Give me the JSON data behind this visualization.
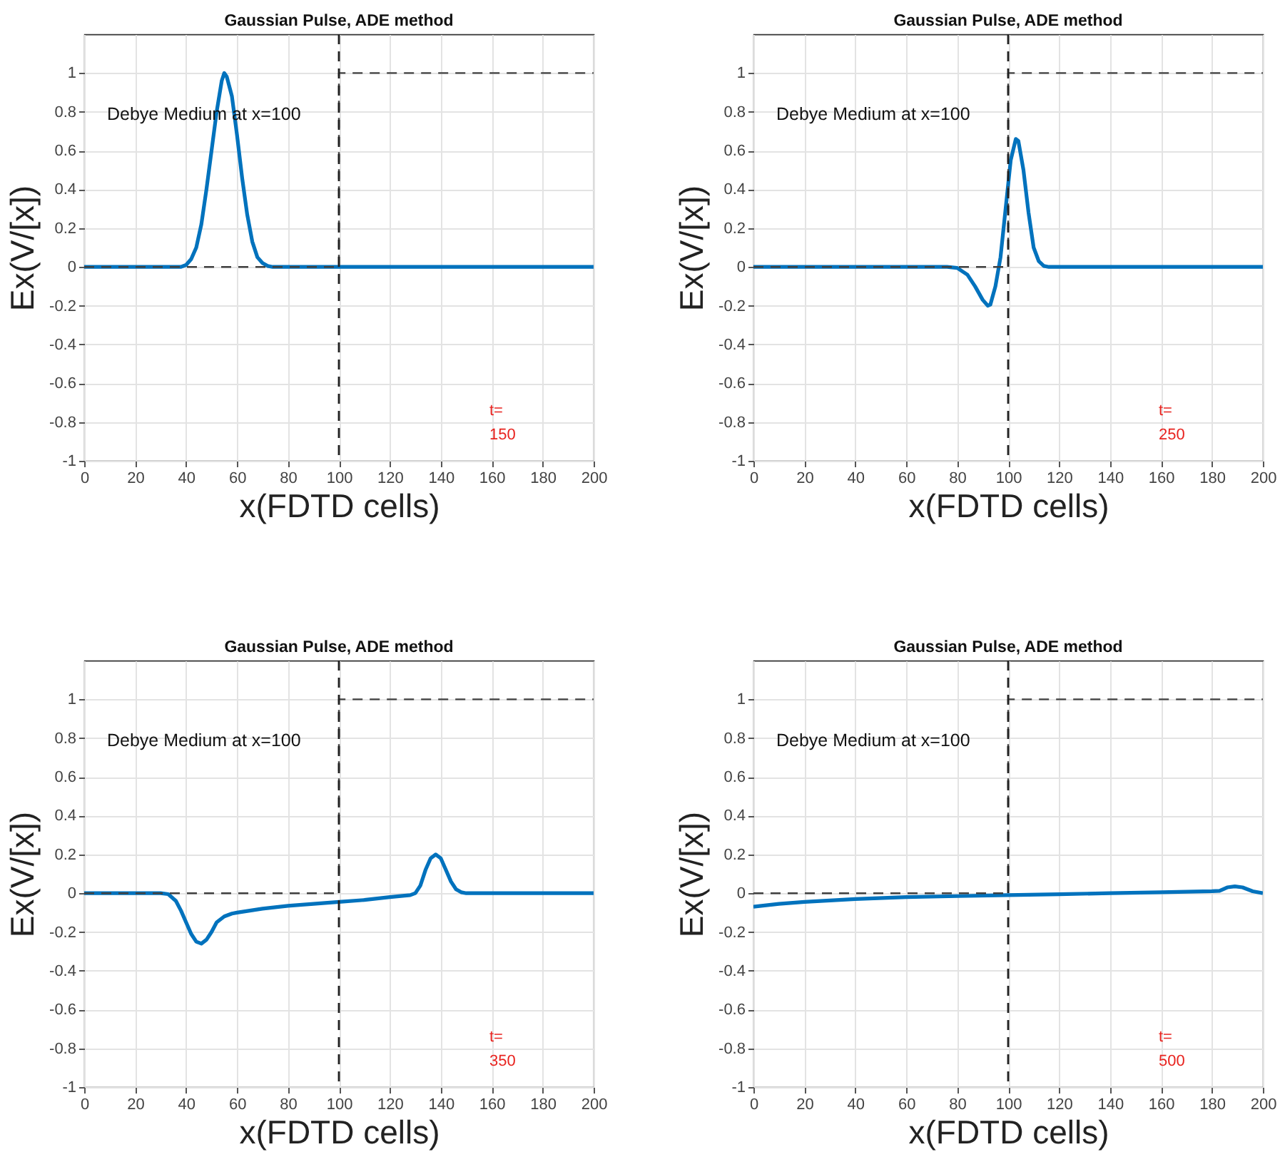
{
  "chart_data": [
    {
      "type": "line",
      "title": "Gaussian Pulse, ADE method",
      "xlabel": "x(FDTD cells)",
      "ylabel": "Ex(V/[x])",
      "xlim": [
        0,
        200
      ],
      "ylim": [
        -1,
        1.2
      ],
      "xticks": [
        0,
        20,
        40,
        60,
        80,
        100,
        120,
        140,
        160,
        180,
        200
      ],
      "yticks": [
        -1,
        -0.8,
        -0.6,
        -0.4,
        -0.2,
        0,
        0.2,
        0.4,
        0.6,
        0.8,
        1
      ],
      "grid": true,
      "series": [
        {
          "type": "line",
          "color": "#0072bd",
          "x": [
            0,
            38,
            40,
            42,
            44,
            46,
            48,
            50,
            52,
            54,
            55,
            56,
            58,
            60,
            62,
            64,
            66,
            68,
            70,
            72,
            74,
            200
          ],
          "values": [
            0,
            0,
            0.01,
            0.04,
            0.1,
            0.22,
            0.4,
            0.6,
            0.8,
            0.96,
            1,
            0.98,
            0.88,
            0.68,
            0.46,
            0.27,
            0.13,
            0.05,
            0.02,
            0.005,
            0,
            0
          ]
        },
        {
          "type": "line",
          "color": "#404040",
          "line_style": "dashed",
          "x": [
            0,
            100,
            100,
            200
          ],
          "values": [
            0,
            0,
            1,
            1
          ]
        }
      ],
      "ref_lines": [
        {
          "axis": "x",
          "value": 100,
          "color": "#202020",
          "line_style": "dashed"
        }
      ],
      "annotations": [
        "Debye Medium at x=100",
        "t=",
        "150"
      ]
    },
    {
      "type": "line",
      "title": "Gaussian Pulse, ADE method",
      "xlabel": "x(FDTD cells)",
      "ylabel": "Ex(V/[x])",
      "xlim": [
        0,
        200
      ],
      "ylim": [
        -1,
        1.2
      ],
      "xticks": [
        0,
        20,
        40,
        60,
        80,
        100,
        120,
        140,
        160,
        180,
        200
      ],
      "yticks": [
        -1,
        -0.8,
        -0.6,
        -0.4,
        -0.2,
        0,
        0.2,
        0.4,
        0.6,
        0.8,
        1
      ],
      "grid": true,
      "series": [
        {
          "type": "line",
          "color": "#0072bd",
          "x": [
            0,
            76,
            80,
            84,
            87,
            90,
            92,
            93,
            95,
            97,
            99,
            101,
            103,
            104,
            106,
            108,
            110,
            112,
            114,
            116,
            200
          ],
          "values": [
            0,
            0,
            -0.005,
            -0.04,
            -0.1,
            -0.17,
            -0.2,
            -0.195,
            -0.1,
            0.05,
            0.3,
            0.55,
            0.66,
            0.65,
            0.5,
            0.28,
            0.1,
            0.03,
            0.005,
            0,
            0
          ]
        },
        {
          "type": "line",
          "color": "#404040",
          "line_style": "dashed",
          "x": [
            0,
            100,
            100,
            200
          ],
          "values": [
            0,
            0,
            1,
            1
          ]
        }
      ],
      "ref_lines": [
        {
          "axis": "x",
          "value": 100,
          "color": "#202020",
          "line_style": "dashed"
        }
      ],
      "annotations": [
        "Debye Medium at x=100",
        "t=",
        "250"
      ]
    },
    {
      "type": "line",
      "title": "Gaussian Pulse, ADE method",
      "xlabel": "x(FDTD cells)",
      "ylabel": "Ex(V/[x])",
      "xlim": [
        0,
        200
      ],
      "ylim": [
        -1,
        1.2
      ],
      "xticks": [
        0,
        20,
        40,
        60,
        80,
        100,
        120,
        140,
        160,
        180,
        200
      ],
      "yticks": [
        -1,
        -0.8,
        -0.6,
        -0.4,
        -0.2,
        0,
        0.2,
        0.4,
        0.6,
        0.8,
        1
      ],
      "grid": true,
      "series": [
        {
          "type": "line",
          "color": "#0072bd",
          "x": [
            0,
            30,
            33,
            36,
            38,
            40,
            42,
            44,
            46,
            48,
            50,
            52,
            55,
            58,
            60,
            70,
            80,
            90,
            100,
            110,
            120,
            128,
            130,
            132,
            134,
            136,
            138,
            140,
            142,
            144,
            146,
            148,
            150,
            200
          ],
          "values": [
            0,
            0,
            -0.005,
            -0.04,
            -0.09,
            -0.15,
            -0.21,
            -0.25,
            -0.26,
            -0.24,
            -0.2,
            -0.15,
            -0.12,
            -0.105,
            -0.1,
            -0.08,
            -0.065,
            -0.055,
            -0.045,
            -0.035,
            -0.02,
            -0.01,
            0,
            0.04,
            0.12,
            0.18,
            0.2,
            0.18,
            0.12,
            0.06,
            0.02,
            0.005,
            0,
            0
          ]
        },
        {
          "type": "line",
          "color": "#404040",
          "line_style": "dashed",
          "x": [
            0,
            100,
            100,
            200
          ],
          "values": [
            0,
            0,
            1,
            1
          ]
        }
      ],
      "ref_lines": [
        {
          "axis": "x",
          "value": 100,
          "color": "#202020",
          "line_style": "dashed"
        }
      ],
      "annotations": [
        "Debye Medium at x=100",
        "t=",
        "350"
      ]
    },
    {
      "type": "line",
      "title": "Gaussian Pulse, ADE method",
      "xlabel": "x(FDTD cells)",
      "ylabel": "Ex(V/[x])",
      "xlim": [
        0,
        200
      ],
      "ylim": [
        -1,
        1.2
      ],
      "xticks": [
        0,
        20,
        40,
        60,
        80,
        100,
        120,
        140,
        160,
        180,
        200
      ],
      "yticks": [
        -1,
        -0.8,
        -0.6,
        -0.4,
        -0.2,
        0,
        0.2,
        0.4,
        0.6,
        0.8,
        1
      ],
      "grid": true,
      "series": [
        {
          "type": "line",
          "color": "#0072bd",
          "x": [
            0,
            10,
            20,
            40,
            60,
            80,
            100,
            120,
            140,
            160,
            180,
            183,
            186,
            189,
            192,
            196,
            200
          ],
          "values": [
            -0.07,
            -0.055,
            -0.045,
            -0.03,
            -0.02,
            -0.015,
            -0.01,
            -0.005,
            0,
            0.005,
            0.01,
            0.012,
            0.03,
            0.035,
            0.03,
            0.01,
            0
          ]
        },
        {
          "type": "line",
          "color": "#404040",
          "line_style": "dashed",
          "x": [
            0,
            100,
            100,
            200
          ],
          "values": [
            0,
            0,
            1,
            1
          ]
        }
      ],
      "ref_lines": [
        {
          "axis": "x",
          "value": 100,
          "color": "#202020",
          "line_style": "dashed"
        }
      ],
      "annotations": [
        "Debye Medium at x=100",
        "t=",
        "500"
      ]
    }
  ]
}
